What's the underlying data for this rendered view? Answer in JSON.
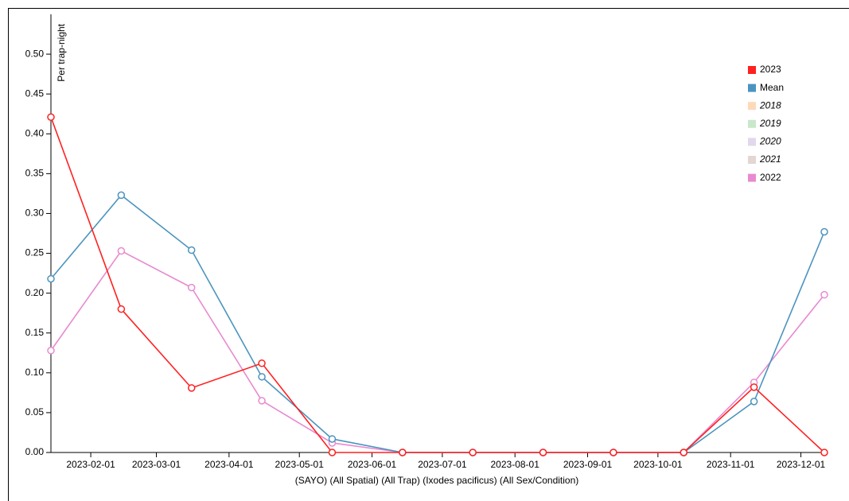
{
  "chart_data": {
    "type": "line",
    "y_label": "Per trap-night",
    "x_label": "(SAYO) (All Spatial) (All Trap) (Ixodes pacificus) (All Sex/Condition)",
    "x": [
      "2023-01-15",
      "2023-02-14",
      "2023-03-16",
      "2023-04-15",
      "2023-05-15",
      "2023-06-14",
      "2023-07-14",
      "2023-08-13",
      "2023-09-12",
      "2023-10-12",
      "2023-11-11",
      "2023-12-11"
    ],
    "xlim": [
      "2023-01-15",
      "2023-12-11"
    ],
    "xticks": [
      "2023-02-01",
      "2023-03-01",
      "2023-04-01",
      "2023-05-01",
      "2023-06-01",
      "2023-07-01",
      "2023-08-01",
      "2023-09-01",
      "2023-10-01",
      "2023-11-01",
      "2023-12-01"
    ],
    "ylim": [
      0,
      0.55
    ],
    "yticks": [
      {
        "value": 0,
        "label": "0.00"
      },
      {
        "value": 0.05,
        "label": "0.05"
      },
      {
        "value": 0.1,
        "label": "0.10"
      },
      {
        "value": 0.15,
        "label": "0.15"
      },
      {
        "value": 0.2,
        "label": "0.20"
      },
      {
        "value": 0.25,
        "label": "0.25"
      },
      {
        "value": 0.3,
        "label": "0.30"
      },
      {
        "value": 0.35,
        "label": "0.35"
      },
      {
        "value": 0.4,
        "label": "0.40"
      },
      {
        "value": 0.45,
        "label": "0.45"
      },
      {
        "value": 0.5,
        "label": "0.50"
      }
    ],
    "legend_position": "upper right",
    "series": [
      {
        "name": "2023",
        "color": "#ff2020",
        "values": [
          0.421,
          0.18,
          0.081,
          0.112,
          0,
          0,
          0,
          0,
          0,
          0,
          0.082,
          0
        ]
      },
      {
        "name": "Mean",
        "color": "#4b94bf",
        "values": [
          0.218,
          0.323,
          0.254,
          0.095,
          0.017,
          0,
          0,
          0,
          0,
          0,
          0.064,
          0.277
        ]
      },
      {
        "name": "2018",
        "color": "#ffd8b8",
        "hidden": true,
        "values": [
          null,
          null,
          null,
          null,
          null,
          null,
          null,
          null,
          null,
          null,
          null,
          null
        ]
      },
      {
        "name": "2019",
        "color": "#c9e8c9",
        "hidden": true,
        "values": [
          null,
          null,
          null,
          null,
          null,
          null,
          null,
          null,
          null,
          null,
          null,
          null
        ]
      },
      {
        "name": "2020",
        "color": "#e2d8ee",
        "hidden": true,
        "values": [
          null,
          null,
          null,
          null,
          null,
          null,
          null,
          null,
          null,
          null,
          null,
          null
        ]
      },
      {
        "name": "2021",
        "color": "#e4d6d2",
        "hidden": true,
        "values": [
          null,
          null,
          null,
          null,
          null,
          null,
          null,
          null,
          null,
          null,
          null,
          null
        ]
      },
      {
        "name": "2022",
        "color": "#e88ad0",
        "values": [
          0.128,
          0.253,
          0.207,
          0.065,
          0.012,
          0,
          0,
          0,
          0,
          0,
          0.088,
          0.198
        ]
      }
    ]
  }
}
